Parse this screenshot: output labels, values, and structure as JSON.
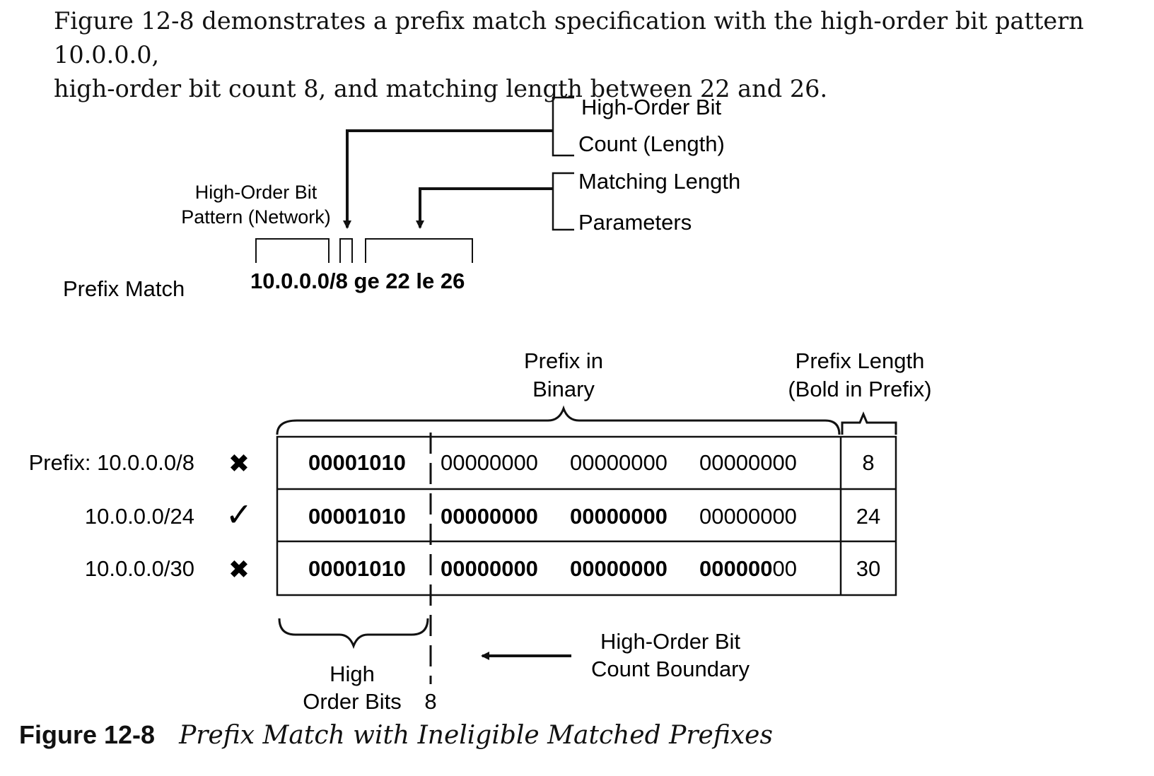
{
  "intro": {
    "line1": "Figure 12-8 demonstrates a prefix match specification with the high-order bit pattern 10.0.0.0,",
    "line2": "high-order bit count 8, and matching length between 22 and 26."
  },
  "diagram": {
    "labels": {
      "high_order_bit_count_line1": "High-Order Bit",
      "high_order_bit_count_line2": "Count (Length)",
      "matching_length_line1": "Matching Length",
      "matching_length_line2": "Parameters",
      "pattern_line1": "High-Order Bit",
      "pattern_line2": "Pattern (Network)",
      "prefix_match": "Prefix Match",
      "expression": "10.0.0.0/8 ge 22 le 26",
      "prefix_in_binary_line1": "Prefix in",
      "prefix_in_binary_line2": "Binary",
      "prefix_length_line1": "Prefix Length",
      "prefix_length_line2": "(Bold in Prefix)",
      "high_order_bits_line1": "High",
      "high_order_bits_line2": "Order Bits",
      "boundary_value": "8",
      "boundary_line1": "High-Order Bit",
      "boundary_line2": "Count Boundary"
    },
    "rows": [
      {
        "label": "Prefix: 10.0.0.0/8",
        "status": "not-matched",
        "status_glyph": "✖",
        "octets": [
          {
            "bold": "00001010",
            "normal": ""
          },
          {
            "bold": "",
            "normal": "00000000"
          },
          {
            "bold": "",
            "normal": "00000000"
          },
          {
            "bold": "",
            "normal": "00000000"
          }
        ],
        "length": "8"
      },
      {
        "label": "10.0.0.0/24",
        "status": "matched",
        "status_glyph": "✓",
        "octets": [
          {
            "bold": "00001010",
            "normal": ""
          },
          {
            "bold": "00000000",
            "normal": ""
          },
          {
            "bold": "00000000",
            "normal": ""
          },
          {
            "bold": "",
            "normal": "00000000"
          }
        ],
        "length": "24"
      },
      {
        "label": "10.0.0.0/30",
        "status": "not-matched",
        "status_glyph": "✖",
        "octets": [
          {
            "bold": "00001010",
            "normal": ""
          },
          {
            "bold": "00000000",
            "normal": ""
          },
          {
            "bold": "00000000",
            "normal": ""
          },
          {
            "bold": "000000",
            "normal": "00"
          }
        ],
        "length": "30"
      }
    ]
  },
  "caption": {
    "number": "Figure 12-8",
    "title": "Prefix Match with Ineligible Matched Prefixes"
  }
}
